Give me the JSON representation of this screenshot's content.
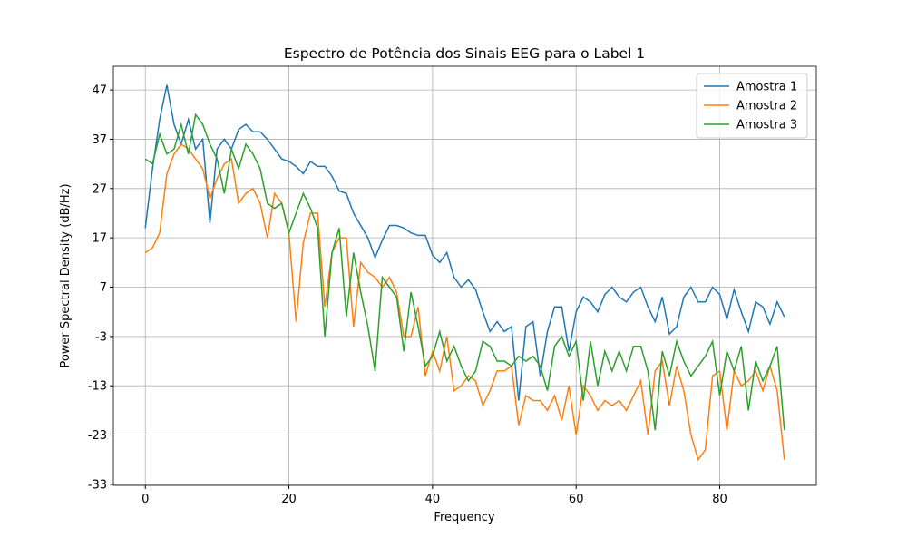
{
  "chart_data": {
    "type": "line",
    "title": "Espectro de Potência dos Sinais EEG para o Label 1",
    "x_label": "Frequency",
    "y_label": "Power Spectral Density (dB/Hz)",
    "x": [
      0,
      1,
      2,
      3,
      4,
      5,
      6,
      7,
      8,
      9,
      10,
      11,
      12,
      13,
      14,
      15,
      16,
      17,
      18,
      19,
      20,
      21,
      22,
      23,
      24,
      25,
      26,
      27,
      28,
      29,
      30,
      31,
      32,
      33,
      34,
      35,
      36,
      37,
      38,
      39,
      40,
      41,
      42,
      43,
      44,
      45,
      46,
      47,
      48,
      49,
      50,
      51,
      52,
      53,
      54,
      55,
      56,
      57,
      58,
      59,
      60,
      61,
      62,
      63,
      64,
      65,
      66,
      67,
      68,
      69,
      70,
      71,
      72,
      73,
      74,
      75,
      76,
      77,
      78,
      79,
      80,
      81,
      82,
      83,
      84,
      85,
      86,
      87,
      88,
      89
    ],
    "series": [
      {
        "name": "Amostra 1",
        "color": "#1f77b4",
        "values": [
          19,
          31,
          41,
          48,
          40,
          36,
          41,
          35,
          37,
          20,
          35,
          37,
          35,
          39,
          40,
          38.5,
          38.5,
          37,
          35,
          33,
          32.5,
          31.5,
          30,
          32.5,
          31.5,
          31.5,
          29.5,
          26.5,
          26,
          22,
          19.5,
          17,
          13,
          16.5,
          19.5,
          19.5,
          19,
          18,
          17.5,
          17.5,
          13.5,
          12,
          14,
          9,
          7,
          8.5,
          6.5,
          2,
          -2,
          0,
          -2,
          -1,
          -16,
          -1,
          0,
          -11,
          -2,
          3,
          3,
          -6,
          2,
          5,
          4,
          2,
          5.5,
          7,
          5,
          4,
          6,
          7,
          3,
          0,
          5,
          -2.5,
          -1,
          5,
          7,
          4,
          4,
          7,
          5.5,
          0.5,
          6.5,
          2,
          -2,
          4,
          3,
          -0.5,
          4,
          1
        ]
      },
      {
        "name": "Amostra 2",
        "color": "#ff7f0e",
        "values": [
          14,
          15,
          18,
          30,
          34,
          36,
          35,
          33,
          31,
          25,
          29,
          32,
          33,
          24,
          26,
          27,
          24,
          17,
          26,
          24,
          18,
          0,
          16,
          22,
          22,
          3,
          14,
          17,
          17,
          -1,
          12,
          10,
          9,
          7,
          9,
          6,
          -3,
          -3,
          3,
          -11,
          -6,
          -10,
          -3,
          -14,
          -13,
          -11,
          -12,
          -17,
          -14,
          -10,
          -10,
          -9,
          -21,
          -15,
          -16,
          -16,
          -18,
          -15,
          -20,
          -13,
          -23,
          -13,
          -15,
          -18,
          -16,
          -17,
          -16,
          -18,
          -15,
          -12,
          -23,
          -10,
          -8,
          -17,
          -9,
          -14,
          -23,
          -28,
          -26,
          -11,
          -10,
          -22,
          -10,
          -13,
          -12,
          -10,
          -14,
          -9,
          -14,
          -28
        ]
      },
      {
        "name": "Amostra 3",
        "color": "#2ca02c",
        "values": [
          33,
          32,
          38,
          34,
          35,
          40,
          34,
          42,
          40,
          36,
          33,
          26,
          35,
          31,
          36,
          34,
          31,
          24,
          23,
          24,
          18,
          22,
          26,
          23,
          19,
          -3,
          14,
          19,
          1,
          14,
          6,
          -1,
          -10,
          9,
          7,
          5,
          -6,
          6,
          -1,
          -9,
          -7,
          -2,
          -8,
          -5,
          -9,
          -12,
          -10,
          -4,
          -5,
          -8,
          -8,
          -9,
          -7,
          -8,
          -7,
          -9,
          -14,
          -5,
          -3,
          -7,
          -4,
          -16,
          -4,
          -13,
          -6,
          -10,
          -6,
          -10,
          -5,
          -5,
          -10,
          -22,
          -6,
          -11,
          -4,
          -8,
          -11,
          -9,
          -7,
          -4,
          -15,
          -6,
          -10,
          -5,
          -18,
          -8,
          -12,
          -9,
          -5,
          -22
        ]
      }
    ],
    "xlim": [
      -4.45,
      93.45
    ],
    "xticks": [
      0,
      20,
      40,
      60,
      80
    ],
    "ylim": [
      -33.2,
      51.8
    ],
    "yticks": [
      -33,
      -23,
      -13,
      -3,
      7,
      17,
      27,
      37,
      47
    ],
    "grid": true,
    "legend": "upper right"
  }
}
